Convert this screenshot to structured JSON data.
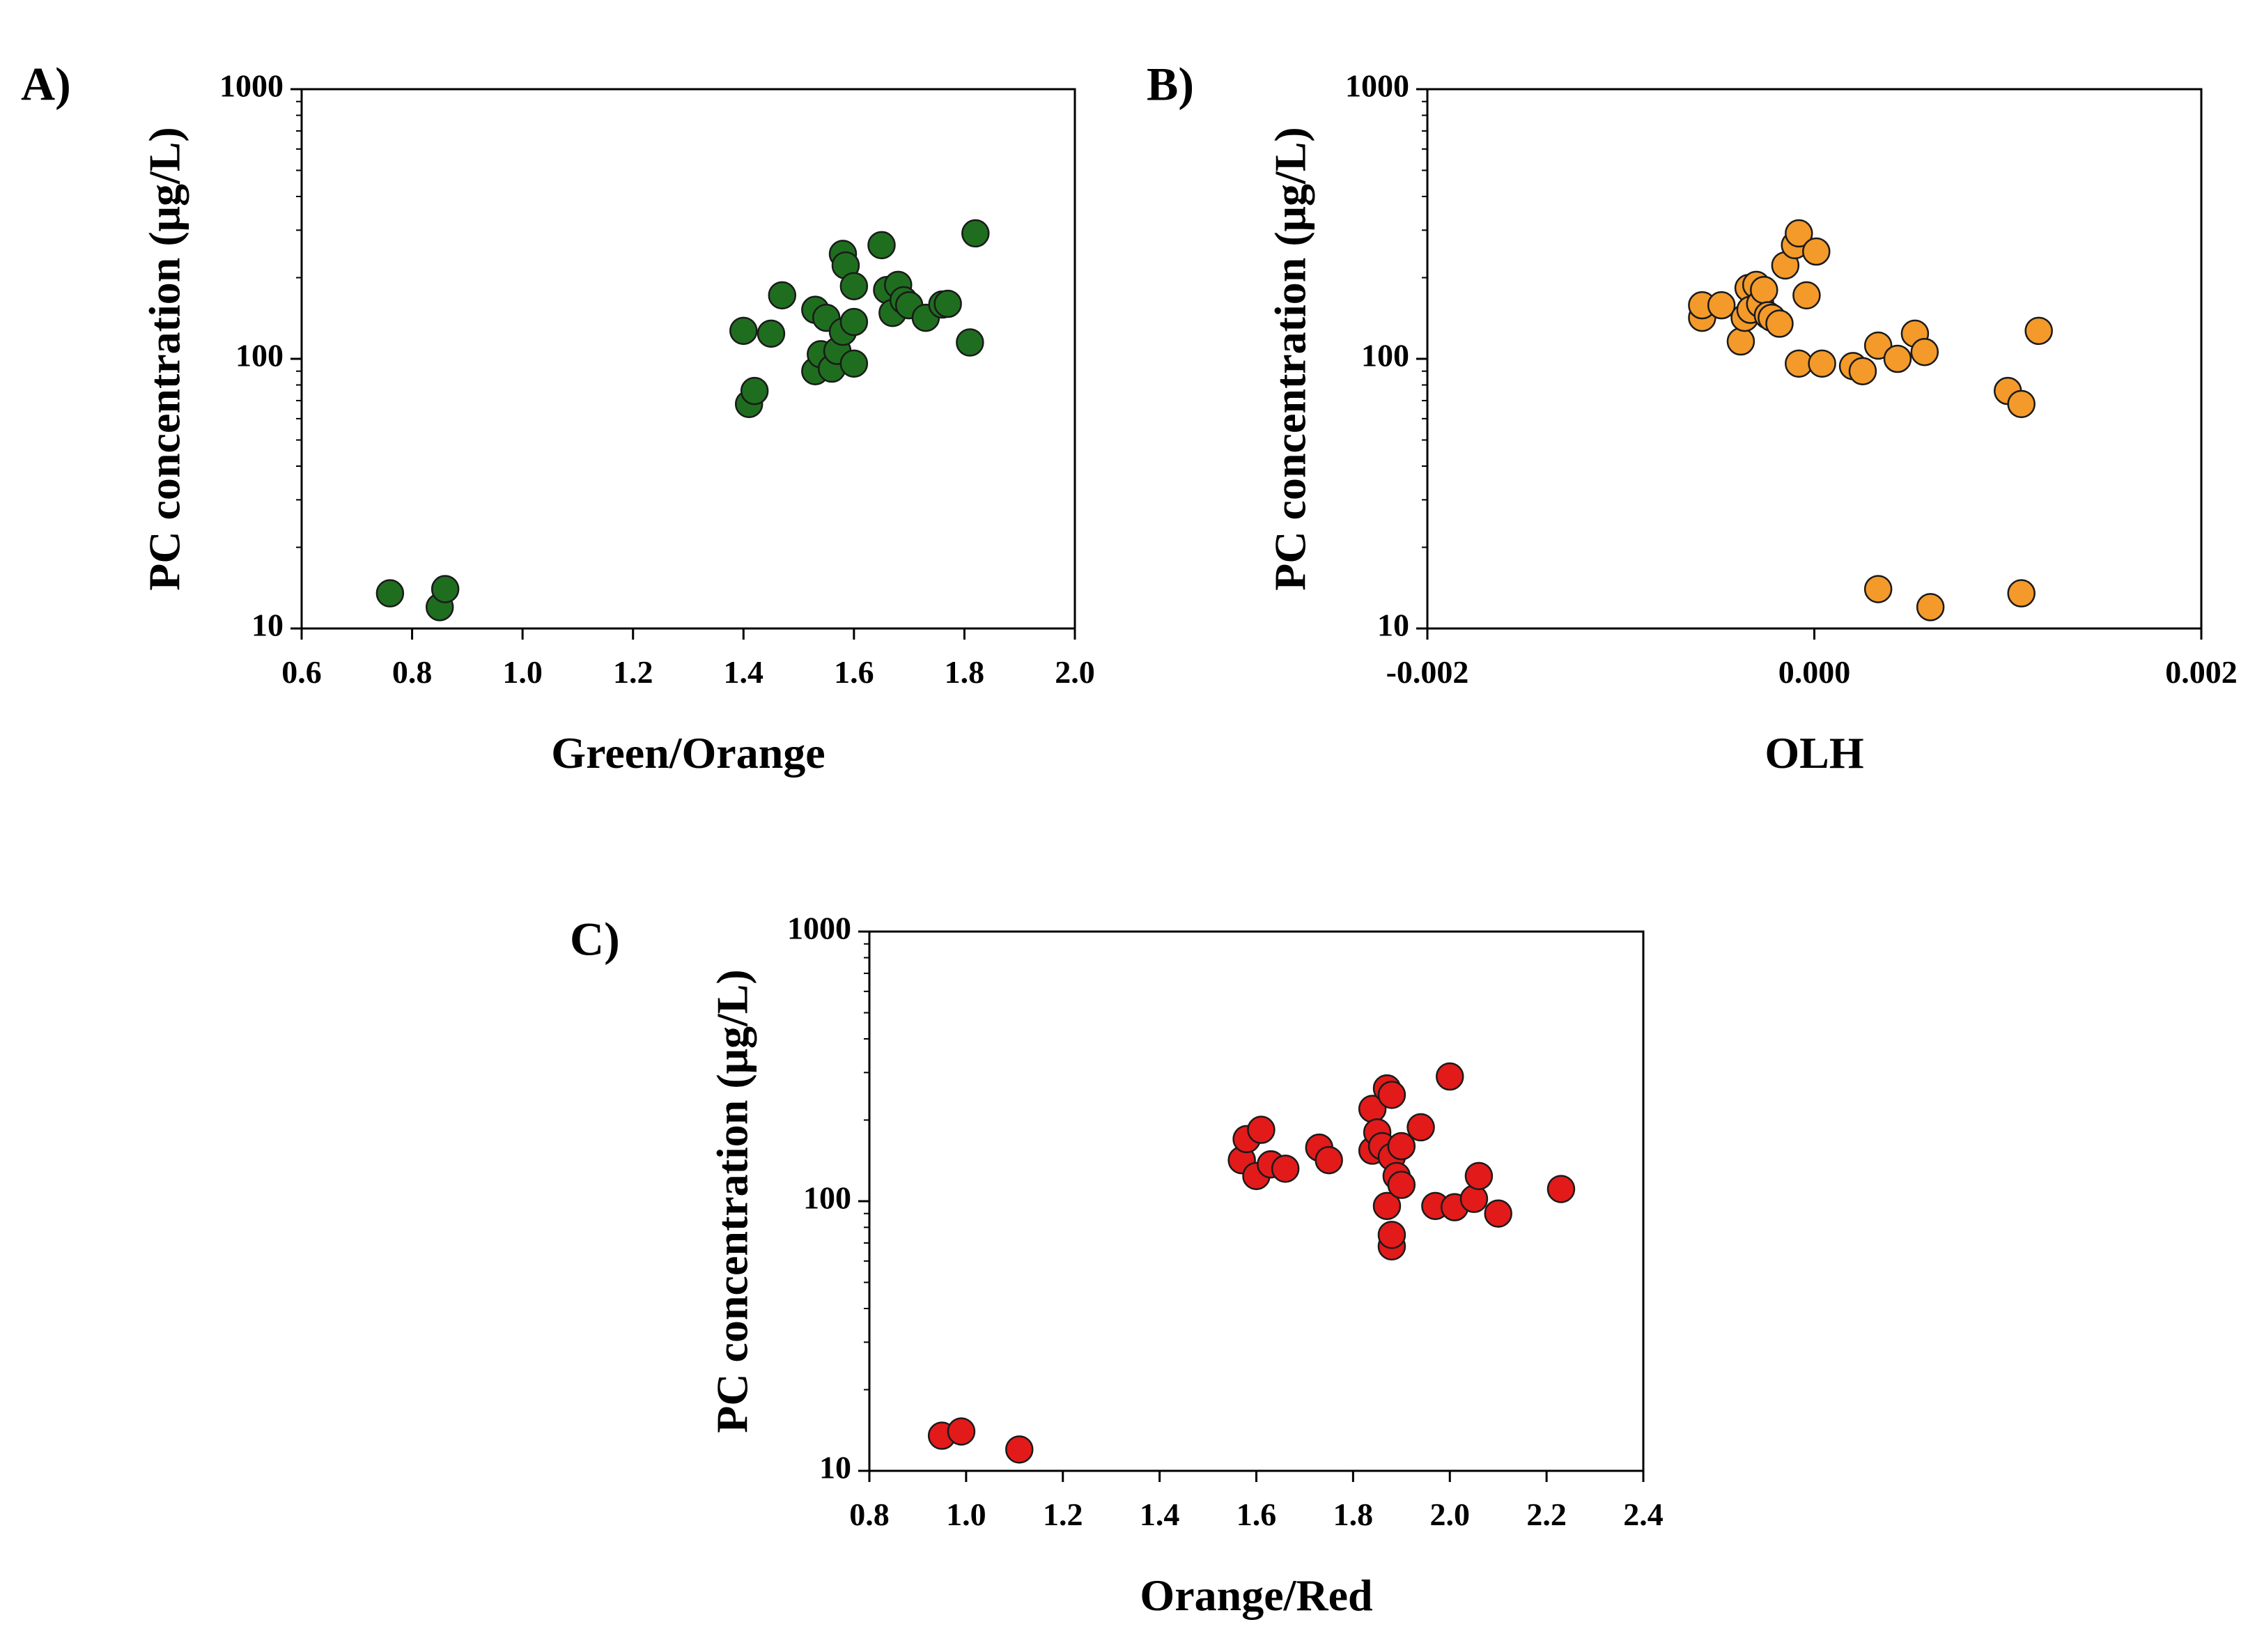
{
  "chart_data": [
    {
      "type": "scatter",
      "panel": "A)",
      "xlabel": "Green/Orange",
      "ylabel": "PC concentration (μg/L)",
      "xlim": [
        0.6,
        2.0
      ],
      "ylim": [
        10,
        1000
      ],
      "yscale": "log",
      "xticks": [
        "0.6",
        "0.8",
        "1.0",
        "1.2",
        "1.4",
        "1.6",
        "1.8",
        "2.0"
      ],
      "yticks": [
        "10",
        "100",
        "1000"
      ],
      "marker_color": "#1f6e1f",
      "points": [
        [
          0.76,
          13.5
        ],
        [
          0.85,
          12
        ],
        [
          0.86,
          14
        ],
        [
          1.41,
          68
        ],
        [
          1.42,
          76
        ],
        [
          1.4,
          127
        ],
        [
          1.45,
          124
        ],
        [
          1.47,
          172
        ],
        [
          1.53,
          90
        ],
        [
          1.54,
          104
        ],
        [
          1.53,
          152
        ],
        [
          1.55,
          142
        ],
        [
          1.56,
          92
        ],
        [
          1.57,
          107
        ],
        [
          1.58,
          126
        ],
        [
          1.58,
          245
        ],
        [
          1.585,
          222
        ],
        [
          1.6,
          186
        ],
        [
          1.6,
          96
        ],
        [
          1.6,
          137
        ],
        [
          1.65,
          264
        ],
        [
          1.66,
          180
        ],
        [
          1.67,
          148
        ],
        [
          1.68,
          188
        ],
        [
          1.69,
          165
        ],
        [
          1.7,
          158
        ],
        [
          1.73,
          142
        ],
        [
          1.76,
          159
        ],
        [
          1.77,
          160
        ],
        [
          1.81,
          115
        ],
        [
          1.82,
          292
        ]
      ]
    },
    {
      "type": "scatter",
      "panel": "B)",
      "xlabel": "OLH",
      "ylabel": "PC concentration (μg/L)",
      "xlim": [
        -0.002,
        0.002
      ],
      "ylim": [
        10,
        1000
      ],
      "yscale": "log",
      "xticks": [
        "-0.002",
        "0.000",
        "0.002"
      ],
      "yticks": [
        "10",
        "100",
        "1000"
      ],
      "marker_color": "#f39a2a",
      "points": [
        [
          -0.00058,
          142
        ],
        [
          -0.00058,
          158
        ],
        [
          -0.00048,
          158
        ],
        [
          -0.00038,
          116
        ],
        [
          -0.00036,
          142
        ],
        [
          -0.00034,
          183
        ],
        [
          -0.00033,
          152
        ],
        [
          -0.0003,
          188
        ],
        [
          -0.00028,
          160
        ],
        [
          -0.00026,
          180
        ],
        [
          -0.00024,
          145
        ],
        [
          -0.00022,
          142
        ],
        [
          -0.00018,
          135
        ],
        [
          -0.00015,
          222
        ],
        [
          -0.0001,
          264
        ],
        [
          -8e-05,
          292
        ],
        [
          -8e-05,
          96
        ],
        [
          -4e-05,
          172
        ],
        [
          1e-05,
          250
        ],
        [
          4e-05,
          96
        ],
        [
          0.0002,
          94
        ],
        [
          0.00025,
          90
        ],
        [
          0.00033,
          112
        ],
        [
          0.00033,
          14
        ],
        [
          0.00043,
          100
        ],
        [
          0.00052,
          124
        ],
        [
          0.00057,
          106
        ],
        [
          0.0006,
          12
        ],
        [
          0.001,
          76
        ],
        [
          0.00107,
          68
        ],
        [
          0.00107,
          13.5
        ],
        [
          0.00116,
          127
        ]
      ]
    },
    {
      "type": "scatter",
      "panel": "C)",
      "xlabel": "Orange/Red",
      "ylabel": "PC concentration (μg/L)",
      "xlim": [
        0.8,
        2.4
      ],
      "ylim": [
        10,
        1000
      ],
      "yscale": "log",
      "xticks": [
        "0.8",
        "1.0",
        "1.2",
        "1.4",
        "1.6",
        "1.8",
        "2.0",
        "2.2",
        "2.4"
      ],
      "yticks": [
        "10",
        "100",
        "1000"
      ],
      "marker_color": "#e21a1a",
      "points": [
        [
          0.95,
          13.5
        ],
        [
          0.99,
          14
        ],
        [
          1.11,
          12
        ],
        [
          1.57,
          142
        ],
        [
          1.58,
          170
        ],
        [
          1.6,
          124
        ],
        [
          1.61,
          184
        ],
        [
          1.63,
          137
        ],
        [
          1.66,
          132
        ],
        [
          1.73,
          158
        ],
        [
          1.75,
          142
        ],
        [
          1.84,
          220
        ],
        [
          1.84,
          154
        ],
        [
          1.85,
          180
        ],
        [
          1.86,
          160
        ],
        [
          1.87,
          96
        ],
        [
          1.87,
          262
        ],
        [
          1.88,
          68
        ],
        [
          1.88,
          75
        ],
        [
          1.88,
          248
        ],
        [
          1.88,
          146
        ],
        [
          1.89,
          124
        ],
        [
          1.9,
          160
        ],
        [
          1.9,
          115
        ],
        [
          1.94,
          188
        ],
        [
          1.97,
          96
        ],
        [
          2.0,
          290
        ],
        [
          2.01,
          95
        ],
        [
          2.05,
          102
        ],
        [
          2.06,
          124
        ],
        [
          2.1,
          90
        ],
        [
          2.23,
          111
        ]
      ]
    }
  ]
}
